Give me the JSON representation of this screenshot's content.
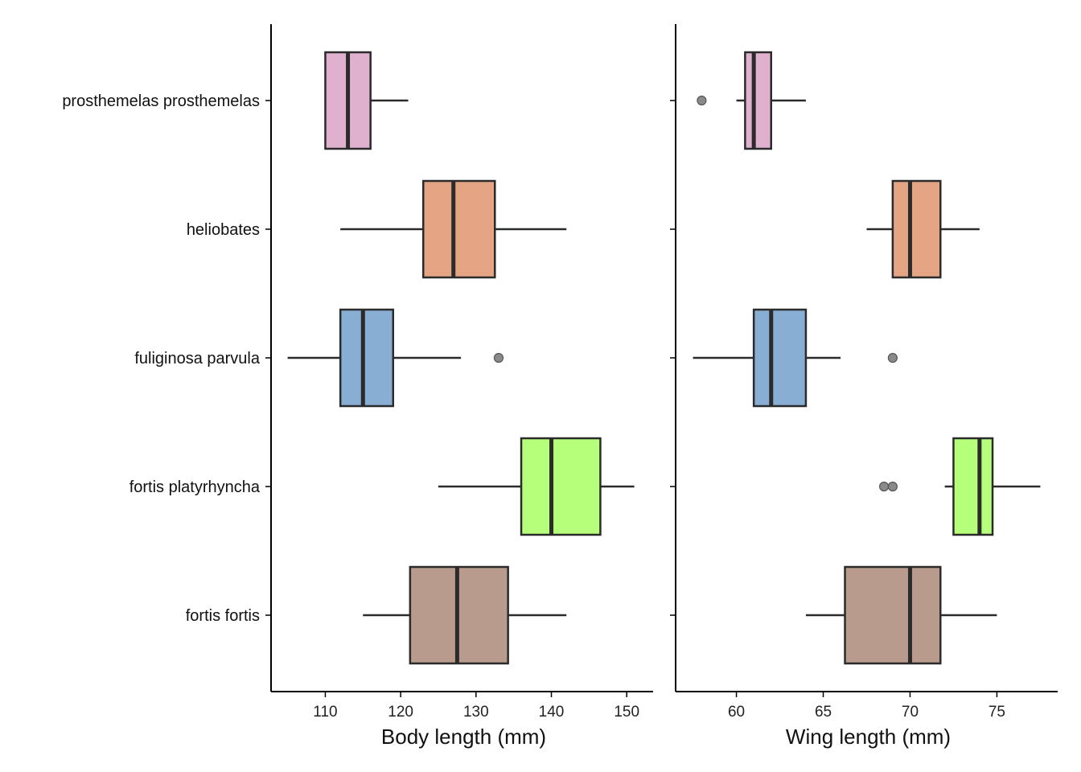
{
  "chart_data": [
    {
      "type": "boxplot",
      "orientation": "horizontal",
      "xlabel": "Body length (mm)",
      "xlim": [
        102.8,
        153.5
      ],
      "xticks": [
        110,
        120,
        130,
        140,
        150
      ],
      "categories": [
        "prosthemelas prosthemelas",
        "heliobates",
        "fuliginosa parvula",
        "fortis platyrhyncha",
        "fortis fortis"
      ],
      "colors": [
        "#e0b1cf",
        "#e5a584",
        "#88aed4",
        "#b5ff7b",
        "#b99b8d"
      ],
      "boxes": [
        {
          "whisker_low": 110,
          "q1": 110,
          "median": 113,
          "q3": 116,
          "whisker_high": 121,
          "outliers": []
        },
        {
          "whisker_low": 112,
          "q1": 123,
          "median": 127,
          "q3": 132.5,
          "whisker_high": 142,
          "outliers": []
        },
        {
          "whisker_low": 105,
          "q1": 112,
          "median": 115,
          "q3": 119,
          "whisker_high": 128,
          "outliers": [
            133
          ]
        },
        {
          "whisker_low": 125,
          "q1": 136,
          "median": 140,
          "q3": 146.5,
          "whisker_high": 151,
          "outliers": []
        },
        {
          "whisker_low": 115,
          "q1": 121.25,
          "median": 127.5,
          "q3": 134.25,
          "whisker_high": 142,
          "outliers": []
        }
      ]
    },
    {
      "type": "boxplot",
      "orientation": "horizontal",
      "xlabel": "Wing length (mm)",
      "xlim": [
        56.5,
        78.5
      ],
      "xticks": [
        60,
        65,
        70,
        75
      ],
      "categories": [
        "prosthemelas prosthemelas",
        "heliobates",
        "fuliginosa parvula",
        "fortis platyrhyncha",
        "fortis fortis"
      ],
      "colors": [
        "#e0b1cf",
        "#e5a584",
        "#88aed4",
        "#b5ff7b",
        "#b99b8d"
      ],
      "boxes": [
        {
          "whisker_low": 60,
          "q1": 60.5,
          "median": 61,
          "q3": 62,
          "whisker_high": 64,
          "outliers": [
            58
          ]
        },
        {
          "whisker_low": 67.5,
          "q1": 69,
          "median": 70,
          "q3": 71.75,
          "whisker_high": 74,
          "outliers": []
        },
        {
          "whisker_low": 57.5,
          "q1": 61,
          "median": 62,
          "q3": 64,
          "whisker_high": 66,
          "outliers": [
            69
          ]
        },
        {
          "whisker_low": 72,
          "q1": 72.5,
          "median": 74,
          "q3": 74.75,
          "whisker_high": 77.5,
          "outliers": [
            68.5,
            69
          ]
        },
        {
          "whisker_low": 64,
          "q1": 66.25,
          "median": 70,
          "q3": 71.75,
          "whisker_high": 75,
          "outliers": []
        }
      ]
    }
  ]
}
